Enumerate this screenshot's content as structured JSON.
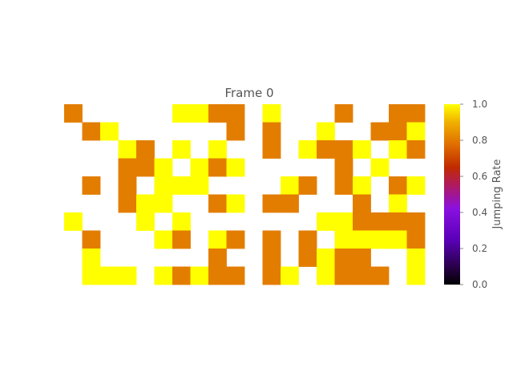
{
  "chart_data": {
    "type": "heatmap",
    "title": "Frame 0",
    "colorbar": {
      "label": "Jumping Rate",
      "range": [
        0.0,
        1.0
      ],
      "ticks": [
        "0.0",
        "0.2",
        "0.4",
        "0.6",
        "0.8",
        "1.0"
      ],
      "colormap": "gnuplot"
    },
    "rows": 10,
    "cols": 20,
    "empty_color": "#ffffff",
    "values": [
      [
        0.8,
        null,
        null,
        null,
        null,
        null,
        1.0,
        1.0,
        0.8,
        0.8,
        null,
        1.0,
        null,
        null,
        null,
        0.8,
        null,
        null,
        0.8,
        0.8
      ],
      [
        null,
        0.8,
        1.0,
        null,
        null,
        null,
        null,
        null,
        null,
        0.8,
        null,
        0.8,
        null,
        null,
        1.0,
        null,
        null,
        0.8,
        0.8,
        1.0
      ],
      [
        null,
        null,
        null,
        1.0,
        0.8,
        null,
        1.0,
        null,
        1.0,
        null,
        null,
        0.8,
        null,
        1.0,
        0.8,
        0.8,
        1.0,
        null,
        1.0,
        0.8
      ],
      [
        null,
        null,
        null,
        0.8,
        0.8,
        1.0,
        null,
        1.0,
        0.8,
        1.0,
        null,
        null,
        null,
        null,
        null,
        0.8,
        null,
        1.0,
        null,
        null
      ],
      [
        null,
        0.8,
        null,
        0.8,
        null,
        1.0,
        1.0,
        1.0,
        null,
        null,
        null,
        null,
        1.0,
        0.8,
        null,
        0.8,
        1.0,
        null,
        0.8,
        1.0
      ],
      [
        null,
        null,
        null,
        0.8,
        1.0,
        1.0,
        null,
        null,
        0.8,
        1.0,
        null,
        0.8,
        0.8,
        null,
        null,
        null,
        0.8,
        null,
        1.0,
        null
      ],
      [
        1.0,
        null,
        null,
        null,
        1.0,
        null,
        1.0,
        null,
        null,
        null,
        null,
        null,
        null,
        null,
        1.0,
        1.0,
        0.8,
        0.8,
        0.8,
        0.8
      ],
      [
        null,
        0.8,
        null,
        null,
        null,
        1.0,
        0.8,
        null,
        1.0,
        0.8,
        null,
        0.8,
        null,
        0.8,
        null,
        1.0,
        1.0,
        1.0,
        1.0,
        0.8
      ],
      [
        null,
        1.0,
        null,
        null,
        null,
        null,
        null,
        null,
        0.8,
        null,
        null,
        0.8,
        null,
        0.8,
        1.0,
        0.8,
        0.8,
        null,
        null,
        1.0
      ],
      [
        null,
        1.0,
        1.0,
        1.0,
        null,
        1.0,
        0.8,
        1.0,
        0.8,
        0.8,
        null,
        0.8,
        1.0,
        null,
        1.0,
        0.8,
        0.8,
        0.8,
        null,
        1.0
      ]
    ]
  }
}
